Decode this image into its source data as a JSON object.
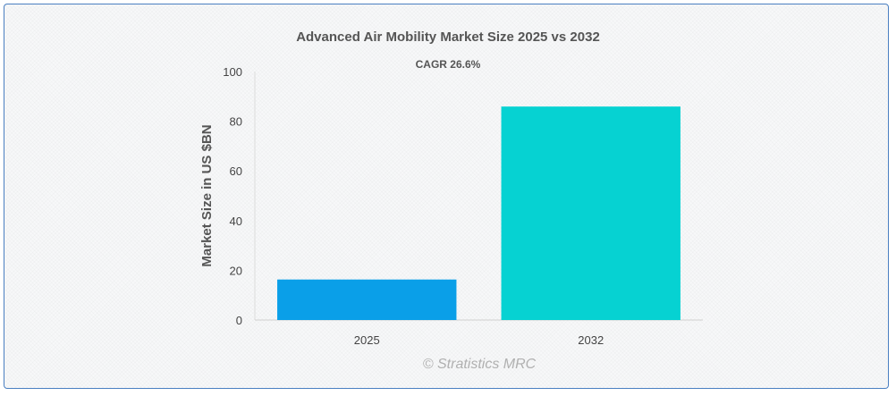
{
  "chart_data": {
    "type": "bar",
    "title": "Advanced Air Mobility Market Size 2025 vs 2032",
    "subtitle": "CAGR 26.6%",
    "categories": [
      "2025",
      "2032"
    ],
    "values": [
      16.3,
      85.9
    ],
    "colors": [
      "#0a9fe8",
      "#06d2d2"
    ],
    "ylabel": "Market Size in US $BN",
    "xlabel": "",
    "ylim": [
      0,
      100
    ],
    "yticks": [
      0,
      20,
      40,
      60,
      80,
      100
    ],
    "grid": false,
    "legend": "none"
  },
  "watermark": "© Stratistics MRC"
}
